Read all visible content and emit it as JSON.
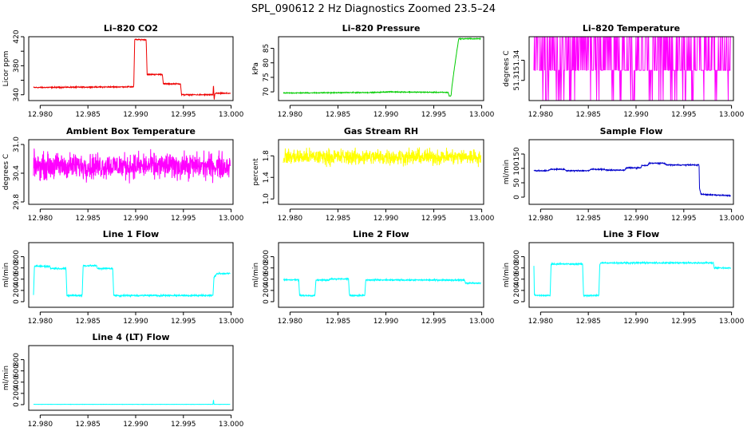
{
  "figure_title": "SPL_090612  2 Hz Diagnostics Zoomed 23.5–24",
  "chart_data": [
    {
      "type": "line",
      "title": "Li–820 CO2",
      "ylabel": "Licor ppm",
      "color": "#ee0000",
      "xlim": [
        12.9788,
        13.0002
      ],
      "ylim": [
        332,
        420
      ],
      "xticks": [
        12.98,
        12.985,
        12.99,
        12.995,
        13.0
      ],
      "xticklabels": [
        "12.980",
        "12.985",
        "12.990",
        "12.995",
        "13.000"
      ],
      "yticks": [
        340,
        360,
        380,
        400,
        420
      ],
      "yticklabels": [
        "340",
        "",
        "380",
        "",
        "420"
      ],
      "series": [
        {
          "name": "CO2",
          "noise": 0.6,
          "points": [
            [
              12.9793,
              350
            ],
            [
              12.9898,
              351
            ],
            [
              12.9899,
              416
            ],
            [
              12.9911,
              416
            ],
            [
              12.9912,
              368
            ],
            [
              12.9928,
              368
            ],
            [
              12.9929,
              355
            ],
            [
              12.9947,
              355
            ],
            [
              12.9948,
              340
            ],
            [
              12.9981,
              340
            ],
            [
              12.99815,
              355
            ],
            [
              12.99822,
              332
            ],
            [
              12.9983,
              342
            ],
            [
              12.9999,
              342
            ]
          ]
        }
      ]
    },
    {
      "type": "line",
      "title": "Li–820 Pressure",
      "ylabel": "kPa",
      "color": "#00cc00",
      "xlim": [
        12.9788,
        13.0002
      ],
      "ylim": [
        67,
        89
      ],
      "xticks": [
        12.98,
        12.985,
        12.99,
        12.995,
        13.0
      ],
      "xticklabels": [
        "12.980",
        "12.985",
        "12.990",
        "12.995",
        "13.000"
      ],
      "yticks": [
        70,
        75,
        80,
        85
      ],
      "yticklabels": [
        "70",
        "75",
        "80",
        "85"
      ],
      "series": [
        {
          "name": "Pressure",
          "noise": 0.12,
          "points": [
            [
              12.9793,
              69.6
            ],
            [
              12.989,
              69.8
            ],
            [
              12.9902,
              70.0
            ],
            [
              12.9965,
              69.8
            ],
            [
              12.9966,
              68.6
            ],
            [
              12.9968,
              68.6
            ],
            [
              12.9969,
              72
            ],
            [
              12.9971,
              77
            ],
            [
              12.9974,
              84
            ],
            [
              12.9976,
              88.3
            ],
            [
              12.9999,
              88.3
            ]
          ]
        }
      ]
    },
    {
      "type": "line",
      "title": "Li–820 Temperature",
      "ylabel": "degrees C",
      "color": "#ff00ff",
      "xlim": [
        12.9788,
        13.0002
      ],
      "ylim": [
        51.28,
        51.375
      ],
      "xticks": [
        12.98,
        12.985,
        12.99,
        12.995,
        13.0
      ],
      "xticklabels": [
        "12.980",
        "12.985",
        "12.990",
        "12.995",
        "13.000"
      ],
      "yticks": [
        51.31,
        51.34
      ],
      "yticklabels": [
        "51.31",
        "51.34"
      ],
      "series": [
        {
          "name": "Temperature",
          "levels": [
            51.28,
            51.325,
            51.375
          ],
          "points": [
            [
              12.9793,
              51.325
            ],
            [
              12.9999,
              51.325
            ]
          ]
        }
      ]
    },
    {
      "type": "line",
      "title": "Ambient Box Temperature",
      "ylabel": "degrees C",
      "color": "#ff00ff",
      "xlim": [
        12.9788,
        13.0002
      ],
      "ylim": [
        29.75,
        31.1
      ],
      "xticks": [
        12.98,
        12.985,
        12.99,
        12.995,
        13.0
      ],
      "xticklabels": [
        "12.980",
        "12.985",
        "12.990",
        "12.995",
        "13.000"
      ],
      "yticks": [
        29.8,
        30.4,
        31.0
      ],
      "yticklabels": [
        "29.8",
        "30.4",
        "31.0"
      ],
      "series": [
        {
          "name": "Box Temperature",
          "noise": 0.22,
          "points": [
            [
              12.9793,
              30.55
            ],
            [
              12.9999,
              30.55
            ]
          ]
        }
      ]
    },
    {
      "type": "line",
      "title": "Gas Stream RH",
      "ylabel": "percent",
      "color": "#ffff00",
      "xlim": [
        12.9788,
        13.0002
      ],
      "ylim": [
        0.9,
        2.1
      ],
      "xticks": [
        12.98,
        12.985,
        12.99,
        12.995,
        13.0
      ],
      "xticklabels": [
        "12.980",
        "12.985",
        "12.990",
        "12.995",
        "13.000"
      ],
      "yticks": [
        1.0,
        1.4,
        1.8
      ],
      "yticklabels": [
        "1.0",
        "1.4",
        "1.8"
      ],
      "series": [
        {
          "name": "RH",
          "noise": 0.12,
          "points": [
            [
              12.9793,
              1.78
            ],
            [
              12.9999,
              1.78
            ]
          ]
        }
      ]
    },
    {
      "type": "line",
      "title": "Sample Flow",
      "ylabel": "ml/min",
      "color": "#0000cc",
      "xlim": [
        12.9788,
        13.0002
      ],
      "ylim": [
        -25,
        200
      ],
      "xticks": [
        12.98,
        12.985,
        12.99,
        12.995,
        13.0
      ],
      "xticklabels": [
        "12.980",
        "12.985",
        "12.990",
        "12.995",
        "13.000"
      ],
      "yticks": [
        0,
        50,
        100,
        150
      ],
      "yticklabels": [
        "0",
        "50",
        "100",
        "150"
      ],
      "series": [
        {
          "name": "Sample Flow",
          "noise": 1.5,
          "points": [
            [
              12.9793,
              92
            ],
            [
              12.9808,
              92
            ],
            [
              12.981,
              97
            ],
            [
              12.9825,
              97
            ],
            [
              12.9827,
              92
            ],
            [
              12.9851,
              92
            ],
            [
              12.9853,
              97
            ],
            [
              12.9867,
              97
            ],
            [
              12.9868,
              94
            ],
            [
              12.9888,
              94
            ],
            [
              12.989,
              102
            ],
            [
              12.9905,
              102
            ],
            [
              12.9906,
              110
            ],
            [
              12.9912,
              110
            ],
            [
              12.9914,
              118
            ],
            [
              12.993,
              118
            ],
            [
              12.9932,
              112
            ],
            [
              12.9966,
              112
            ],
            [
              12.99665,
              30
            ],
            [
              12.9968,
              10
            ],
            [
              12.9999,
              5
            ]
          ]
        }
      ]
    },
    {
      "type": "line",
      "title": "Line 1 Flow",
      "ylabel": "ml/min",
      "color": "#00ffff",
      "xlim": [
        12.9788,
        13.0002
      ],
      "ylim": [
        -100,
        1050
      ],
      "xticks": [
        12.98,
        12.985,
        12.99,
        12.995,
        13.0
      ],
      "xticklabels": [
        "12.980",
        "12.985",
        "12.990",
        "12.995",
        "13.000"
      ],
      "yticks": [
        0,
        200,
        400,
        600,
        800
      ],
      "yticklabels": [
        "0",
        "200",
        "400",
        "600",
        "800"
      ],
      "series": [
        {
          "name": "Line 1",
          "noise": 12,
          "points": [
            [
              12.9793,
              110
            ],
            [
              12.9794,
              630
            ],
            [
              12.981,
              630
            ],
            [
              12.9811,
              590
            ],
            [
              12.9827,
              590
            ],
            [
              12.9828,
              110
            ],
            [
              12.9844,
              110
            ],
            [
              12.9845,
              640
            ],
            [
              12.9859,
              640
            ],
            [
              12.986,
              590
            ],
            [
              12.9876,
              590
            ],
            [
              12.9877,
              110
            ],
            [
              12.9981,
              110
            ],
            [
              12.9982,
              430
            ],
            [
              12.9985,
              500
            ],
            [
              12.9999,
              500
            ]
          ]
        }
      ]
    },
    {
      "type": "line",
      "title": "Line 2 Flow",
      "ylabel": "ml/min",
      "color": "#00ffff",
      "xlim": [
        12.9788,
        13.0002
      ],
      "ylim": [
        -100,
        1050
      ],
      "xticks": [
        12.98,
        12.985,
        12.99,
        12.995,
        13.0
      ],
      "xticklabels": [
        "12.980",
        "12.985",
        "12.990",
        "12.995",
        "13.000"
      ],
      "yticks": [
        0,
        200,
        400,
        600,
        800
      ],
      "yticklabels": [
        "0",
        "200",
        "400",
        "600",
        "800"
      ],
      "series": [
        {
          "name": "Line 2",
          "noise": 10,
          "points": [
            [
              12.9793,
              390
            ],
            [
              12.9809,
              390
            ],
            [
              12.981,
              110
            ],
            [
              12.9826,
              110
            ],
            [
              12.9827,
              385
            ],
            [
              12.984,
              385
            ],
            [
              12.9842,
              405
            ],
            [
              12.9861,
              405
            ],
            [
              12.9862,
              110
            ],
            [
              12.9878,
              110
            ],
            [
              12.9879,
              385
            ],
            [
              12.9982,
              385
            ],
            [
              12.9983,
              330
            ],
            [
              12.9999,
              330
            ]
          ]
        }
      ]
    },
    {
      "type": "line",
      "title": "Line 3 Flow",
      "ylabel": "ml/min",
      "color": "#00ffff",
      "xlim": [
        12.9788,
        13.0002
      ],
      "ylim": [
        -100,
        1050
      ],
      "xticks": [
        12.98,
        12.985,
        12.99,
        12.995,
        13.0
      ],
      "xticklabels": [
        "12.980",
        "12.985",
        "12.990",
        "12.995",
        "13.000"
      ],
      "yticks": [
        0,
        200,
        400,
        600,
        800
      ],
      "yticklabels": [
        "0",
        "200",
        "400",
        "600",
        "800"
      ],
      "series": [
        {
          "name": "Line 3",
          "noise": 10,
          "points": [
            [
              12.9793,
              640
            ],
            [
              12.97935,
              110
            ],
            [
              12.981,
              110
            ],
            [
              12.9811,
              670
            ],
            [
              12.9844,
              670
            ],
            [
              12.9845,
              110
            ],
            [
              12.9861,
              110
            ],
            [
              12.9862,
              660
            ],
            [
              12.9863,
              690
            ],
            [
              12.9981,
              690
            ],
            [
              12.9982,
              600
            ],
            [
              12.9999,
              600
            ]
          ]
        }
      ]
    },
    {
      "type": "line",
      "title": "Line 4 (LT) Flow",
      "ylabel": "ml/min",
      "color": "#00ffff",
      "xlim": [
        12.9788,
        13.0002
      ],
      "ylim": [
        -100,
        1050
      ],
      "xticks": [
        12.98,
        12.985,
        12.99,
        12.995,
        13.0
      ],
      "xticklabels": [
        "12.980",
        "12.985",
        "12.990",
        "12.995",
        "13.000"
      ],
      "yticks": [
        0,
        200,
        400,
        600,
        800
      ],
      "yticklabels": [
        "0",
        "200",
        "400",
        "600",
        "800"
      ],
      "series": [
        {
          "name": "Line 4",
          "noise": 1.5,
          "points": [
            [
              12.9793,
              5
            ],
            [
              12.9981,
              5
            ],
            [
              12.99815,
              90
            ],
            [
              12.9982,
              5
            ],
            [
              12.9999,
              5
            ]
          ]
        }
      ]
    }
  ]
}
